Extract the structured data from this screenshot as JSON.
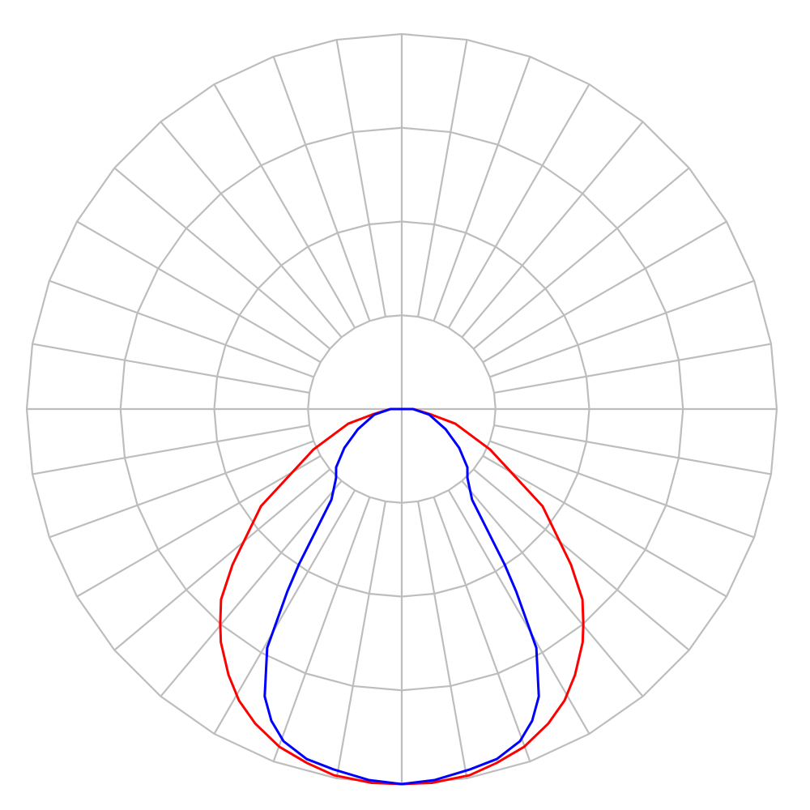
{
  "chart_data": {
    "type": "polar-line",
    "title": "",
    "angle_zero": "down",
    "angle_step_deg": 10,
    "ring_values": [
      0.25,
      0.5,
      0.75,
      1.0
    ],
    "rmax": 1.0,
    "grid": true,
    "symmetric": true,
    "colors": {
      "grid": "#bdbdbd",
      "background": "#ffffff"
    },
    "series": [
      {
        "color": "#ff0000",
        "points": [
          [
            0,
            1.0
          ],
          [
            4.6,
            1.0
          ],
          [
            10.5,
            0.993
          ],
          [
            15,
            0.977
          ],
          [
            19.9,
            0.958
          ],
          [
            25,
            0.925
          ],
          [
            29.2,
            0.89
          ],
          [
            33.1,
            0.846
          ],
          [
            37.8,
            0.787
          ],
          [
            40.2,
            0.75
          ],
          [
            43.5,
            0.7
          ],
          [
            47.4,
            0.613
          ],
          [
            55.4,
            0.456
          ],
          [
            65.4,
            0.259
          ],
          [
            74.7,
            0.148
          ],
          [
            80,
            0.075
          ],
          [
            90,
            0.03
          ],
          [
            90,
            0
          ]
        ]
      },
      {
        "color": "#0000ff",
        "points": [
          [
            0,
            1.0
          ],
          [
            5.1,
            0.993
          ],
          [
            10.7,
            0.978
          ],
          [
            15.2,
            0.967
          ],
          [
            19.6,
            0.94
          ],
          [
            22.7,
            0.901
          ],
          [
            25.5,
            0.849
          ],
          [
            29.4,
            0.731
          ],
          [
            32.1,
            0.574
          ],
          [
            33.5,
            0.497
          ],
          [
            37.8,
            0.306
          ],
          [
            43.6,
            0.254
          ],
          [
            48.4,
            0.234
          ],
          [
            55.9,
            0.185
          ],
          [
            65.2,
            0.129
          ],
          [
            78.4,
            0.075
          ],
          [
            90,
            0.03
          ],
          [
            90,
            0
          ]
        ]
      }
    ]
  }
}
